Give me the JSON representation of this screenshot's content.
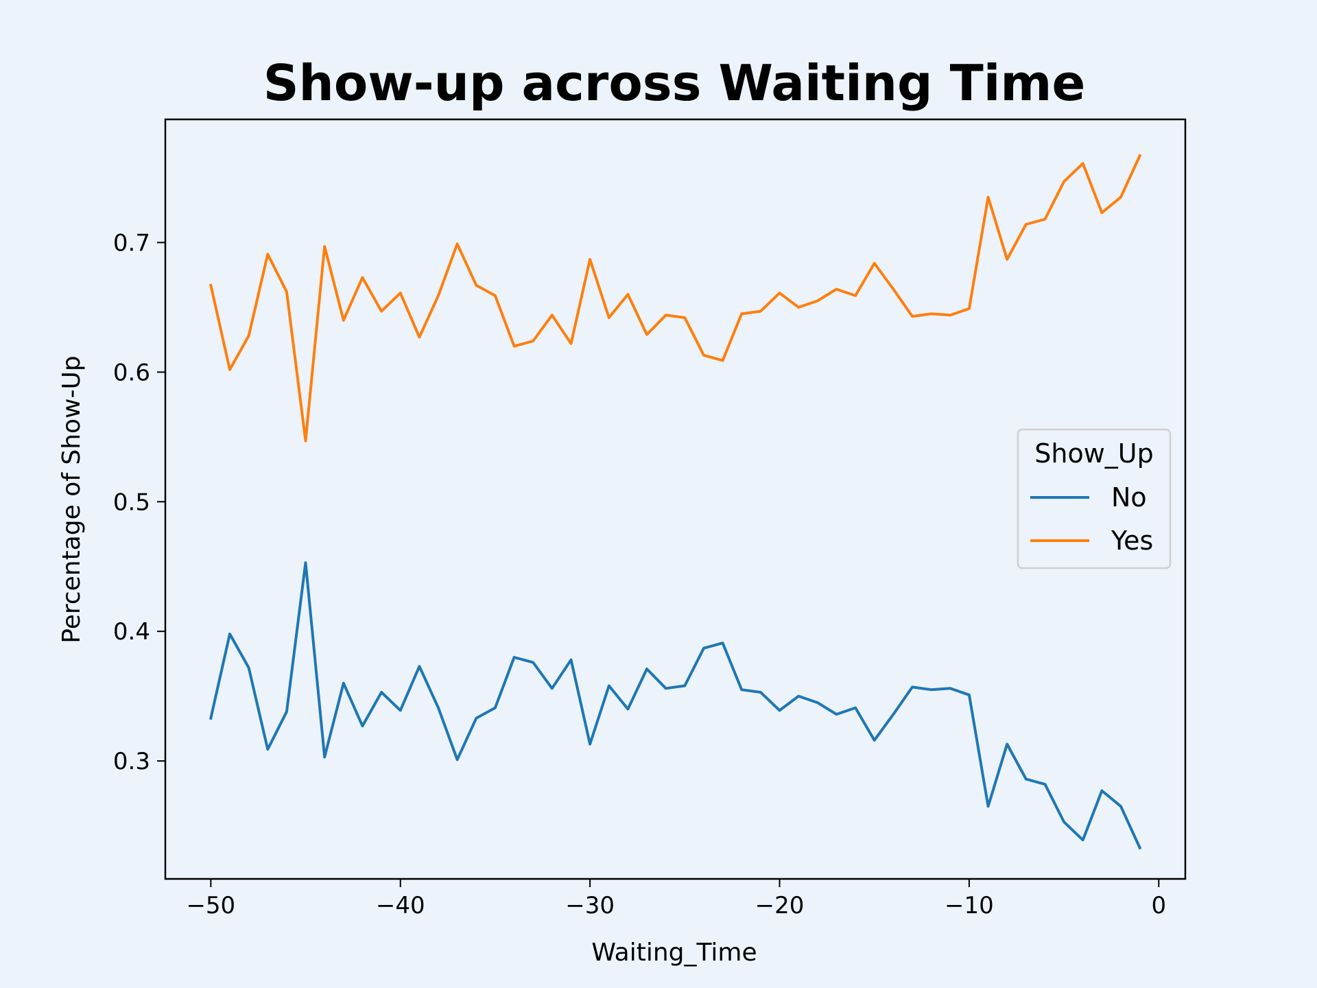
{
  "chart_data": {
    "type": "line",
    "title": "Show-up across Waiting Time",
    "xlabel": "Waiting_Time",
    "ylabel": "Percentage of Show-Up",
    "xlim": [
      -52.4,
      1.4
    ],
    "ylim": [
      0.209,
      0.795
    ],
    "xticks": [
      -50,
      -40,
      -30,
      -20,
      -10,
      0
    ],
    "xtick_labels": [
      "−50",
      "−40",
      "−30",
      "−20",
      "−10",
      "0"
    ],
    "yticks": [
      0.3,
      0.4,
      0.5,
      0.6,
      0.7
    ],
    "ytick_labels": [
      "0.3",
      "0.4",
      "0.5",
      "0.6",
      "0.7"
    ],
    "grid": false,
    "legend": {
      "title": "Show_Up",
      "placement": "center-right"
    },
    "x": [
      -50,
      -49,
      -48,
      -47,
      -46,
      -45,
      -44,
      -43,
      -42,
      -41,
      -40,
      -39,
      -38,
      -37,
      -36,
      -35,
      -34,
      -33,
      -32,
      -31,
      -30,
      -29,
      -28,
      -27,
      -26,
      -25,
      -24,
      -23,
      -22,
      -21,
      -20,
      -19,
      -18,
      -17,
      -16,
      -15,
      -14,
      -13,
      -12,
      -11,
      -10,
      -9,
      -8,
      -7,
      -6,
      -5,
      -4,
      -3,
      -2,
      -1
    ],
    "series": [
      {
        "name": "No",
        "color": "#1f77b4",
        "values": [
          0.333,
          0.398,
          0.372,
          0.309,
          0.338,
          0.453,
          0.303,
          0.36,
          0.327,
          0.353,
          0.339,
          0.373,
          0.341,
          0.301,
          0.333,
          0.341,
          0.38,
          0.376,
          0.356,
          0.378,
          0.313,
          0.358,
          0.34,
          0.371,
          0.356,
          0.358,
          0.387,
          0.391,
          0.355,
          0.353,
          0.339,
          0.35,
          0.345,
          0.336,
          0.341,
          0.316,
          0.336,
          0.357,
          0.355,
          0.356,
          0.351,
          0.265,
          0.313,
          0.286,
          0.282,
          0.253,
          0.239,
          0.277,
          0.265,
          0.233
        ]
      },
      {
        "name": "Yes",
        "color": "#ff7f0e",
        "values": [
          0.667,
          0.602,
          0.628,
          0.691,
          0.662,
          0.547,
          0.697,
          0.64,
          0.673,
          0.647,
          0.661,
          0.627,
          0.659,
          0.699,
          0.667,
          0.659,
          0.62,
          0.624,
          0.644,
          0.622,
          0.687,
          0.642,
          0.66,
          0.629,
          0.644,
          0.642,
          0.613,
          0.609,
          0.645,
          0.647,
          0.661,
          0.65,
          0.655,
          0.664,
          0.659,
          0.684,
          0.664,
          0.643,
          0.645,
          0.644,
          0.649,
          0.735,
          0.687,
          0.714,
          0.718,
          0.747,
          0.761,
          0.723,
          0.735,
          0.767
        ]
      }
    ]
  }
}
